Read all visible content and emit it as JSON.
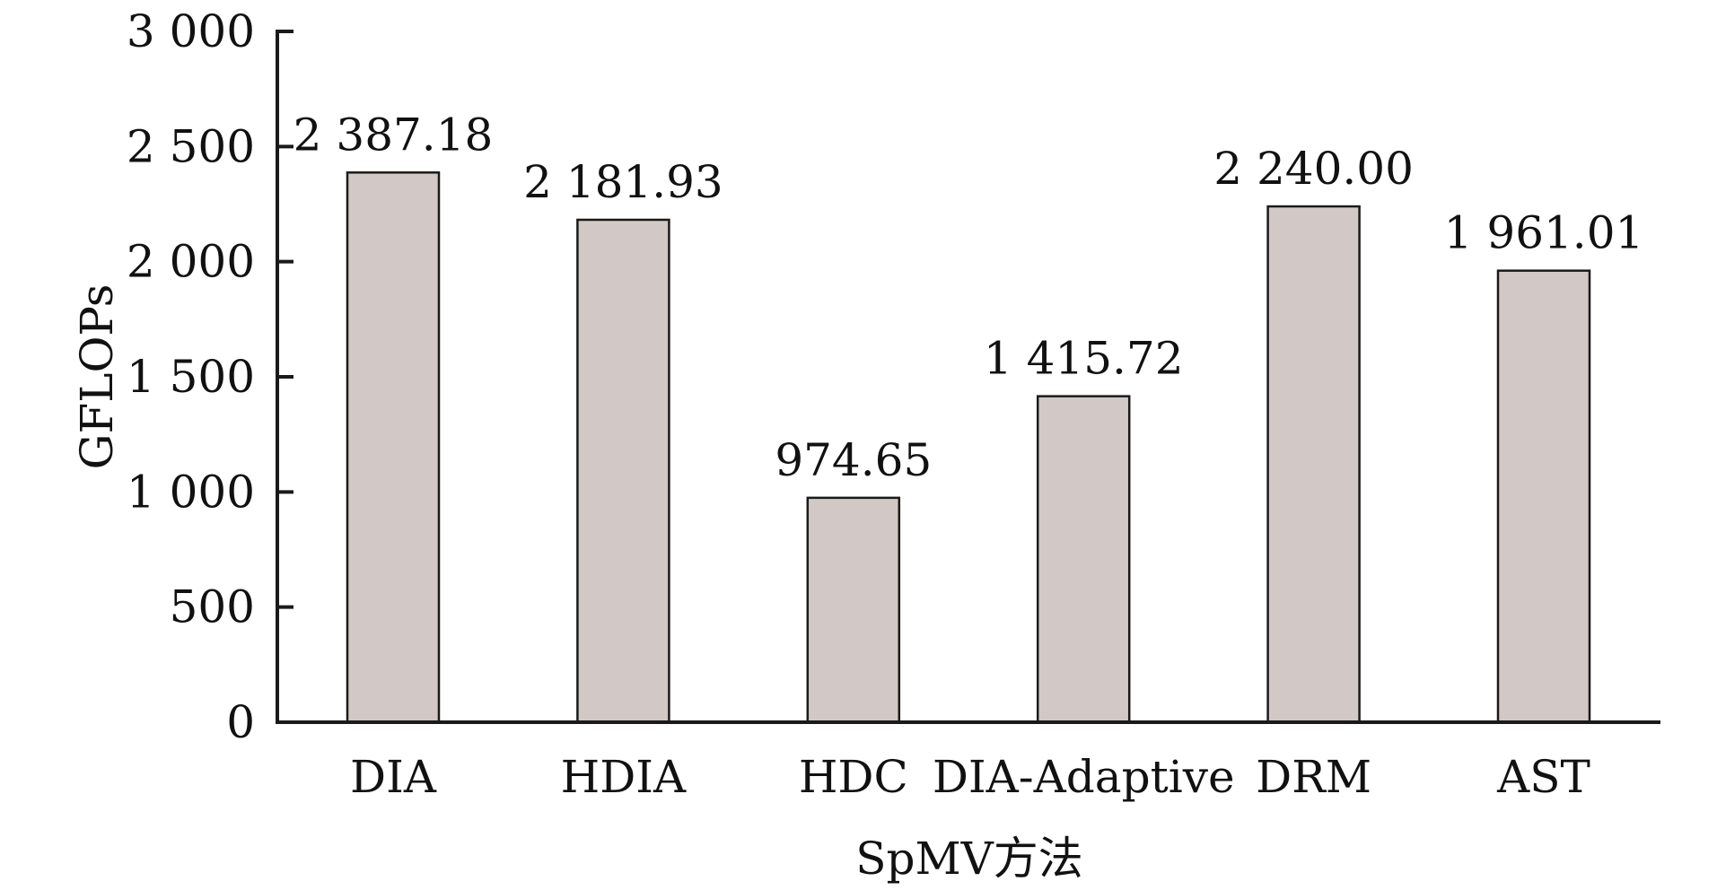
{
  "chart_data": {
    "type": "bar",
    "categories": [
      "DIA",
      "HDIA",
      "HDC",
      "DIA-Adaptive",
      "DRM",
      "AST"
    ],
    "values": [
      2387.18,
      2181.93,
      974.65,
      1415.72,
      2240.0,
      1961.01
    ],
    "value_labels": [
      "2 387.18",
      "2 181.93",
      "974.65",
      "1 415.72",
      "2 240.00",
      "1 961.01"
    ],
    "xlabel": "SpMV方法",
    "ylabel": "GFLOPs",
    "ylim": [
      0,
      3000
    ],
    "yticks": [
      0,
      500,
      1000,
      1500,
      2000,
      2500,
      3000
    ],
    "ytick_labels": [
      "0",
      "500",
      "1 000",
      "1 500",
      "2 000",
      "2 500",
      "3 000"
    ],
    "grid": false,
    "legend": "none",
    "colors": {
      "bar_fill": "#d2c8c6",
      "bar_stroke": "#1a1a1a",
      "axis": "#1a1a1a",
      "text": "#111111"
    }
  }
}
